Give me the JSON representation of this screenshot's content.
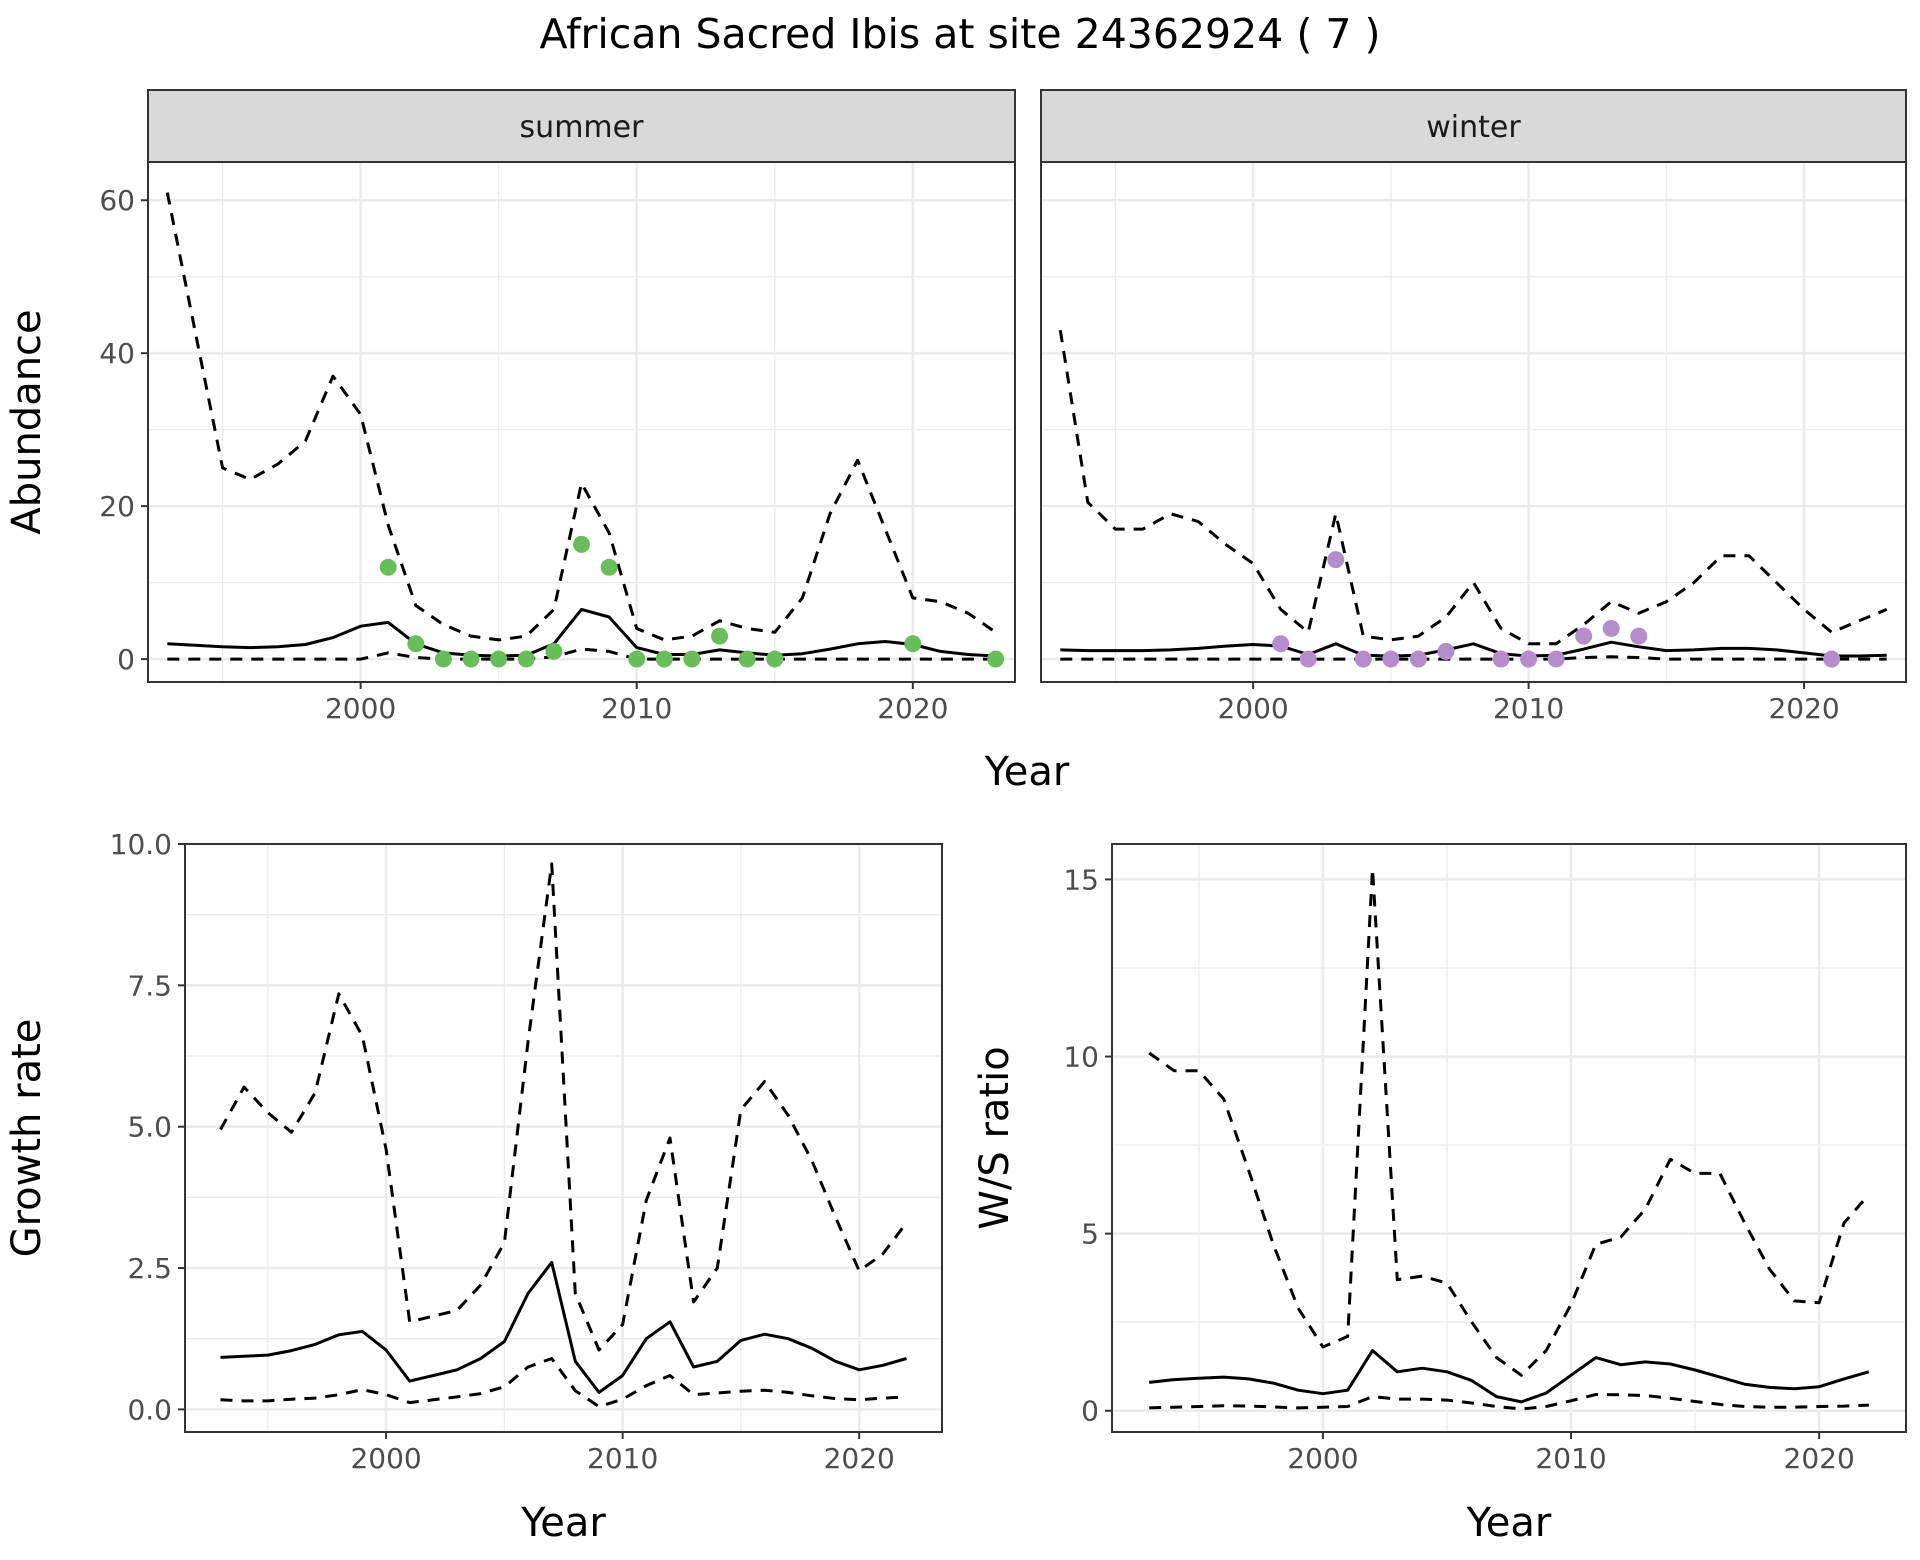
{
  "figure_title": "African Sacred Ibis at site 24362924 ( 7 )",
  "colors": {
    "summer_points": "#6ABD5B",
    "winter_points": "#B48ECC",
    "strip_fill": "#D9D9D9",
    "line": "#000000"
  },
  "chart_data": [
    {
      "type": "line",
      "panel": "abundance-summer",
      "strip": "summer",
      "xlabel": "Year",
      "ylabel": "Abundance",
      "xlim": [
        1992.3,
        2023.7
      ],
      "ylim": [
        -3,
        65
      ],
      "xticks": [
        2000,
        2010,
        2020
      ],
      "yticks": [
        0,
        20,
        40,
        60
      ],
      "grid": true,
      "x": [
        1993,
        1994,
        1995,
        1996,
        1997,
        1998,
        1999,
        2000,
        2001,
        2002,
        2003,
        2004,
        2005,
        2006,
        2007,
        2008,
        2009,
        2010,
        2011,
        2012,
        2013,
        2014,
        2015,
        2016,
        2017,
        2018,
        2019,
        2020,
        2021,
        2022,
        2023
      ],
      "series": [
        {
          "style": "solid",
          "values": [
            2.0,
            1.8,
            1.6,
            1.5,
            1.6,
            1.9,
            2.8,
            4.3,
            4.8,
            2.0,
            0.8,
            0.5,
            0.4,
            0.5,
            2.0,
            6.5,
            5.5,
            1.5,
            0.6,
            0.6,
            1.2,
            0.8,
            0.5,
            0.7,
            1.3,
            2.0,
            2.3,
            1.9,
            1.0,
            0.6,
            0.4
          ]
        },
        {
          "style": "dashed",
          "values": [
            61,
            43,
            25,
            23.5,
            25.5,
            28.5,
            37,
            32,
            17.5,
            7,
            4.5,
            3,
            2.5,
            3,
            6.5,
            23,
            16.5,
            4,
            2.5,
            3,
            5,
            4,
            3.5,
            8,
            19,
            26,
            17,
            8,
            7.5,
            6,
            3.5
          ]
        },
        {
          "style": "dashed",
          "values": [
            0,
            0,
            0,
            0,
            0,
            0,
            0,
            0,
            0.8,
            0.2,
            0,
            0,
            0,
            0,
            0.3,
            1.3,
            1.0,
            0,
            0,
            0,
            0,
            0,
            0,
            0,
            0,
            0,
            0,
            0,
            0,
            0,
            0
          ]
        }
      ],
      "points": {
        "x": [
          2001,
          2002,
          2003,
          2004,
          2005,
          2006,
          2007,
          2008,
          2009,
          2010,
          2011,
          2012,
          2013,
          2014,
          2015,
          2020,
          2023
        ],
        "y": [
          12,
          2,
          0,
          0,
          0,
          0,
          1,
          15,
          12,
          0,
          0,
          0,
          3,
          0,
          0,
          2,
          0
        ]
      }
    },
    {
      "type": "line",
      "panel": "abundance-winter",
      "strip": "winter",
      "xlabel": "Year",
      "ylabel": "Abundance",
      "xlim": [
        1992.3,
        2023.7
      ],
      "ylim": [
        -3,
        65
      ],
      "xticks": [
        2000,
        2010,
        2020
      ],
      "yticks": [
        0,
        20,
        40,
        60
      ],
      "grid": true,
      "x": [
        1993,
        1994,
        1995,
        1996,
        1997,
        1998,
        1999,
        2000,
        2001,
        2002,
        2003,
        2004,
        2005,
        2006,
        2007,
        2008,
        2009,
        2010,
        2011,
        2012,
        2013,
        2014,
        2015,
        2016,
        2017,
        2018,
        2019,
        2020,
        2021,
        2022,
        2023
      ],
      "series": [
        {
          "style": "solid",
          "values": [
            1.2,
            1.1,
            1.1,
            1.1,
            1.2,
            1.4,
            1.7,
            1.9,
            1.7,
            0.6,
            2.0,
            0.5,
            0.4,
            0.5,
            1.2,
            2.0,
            0.7,
            0.4,
            0.5,
            1.3,
            2.2,
            1.6,
            1.1,
            1.2,
            1.4,
            1.4,
            1.2,
            0.8,
            0.4,
            0.4,
            0.5
          ]
        },
        {
          "style": "dashed",
          "values": [
            43,
            20.5,
            17,
            17,
            19,
            18,
            15,
            12.5,
            6.5,
            3.5,
            19,
            3,
            2.5,
            3,
            5.5,
            10,
            4,
            2,
            2,
            4.5,
            7.5,
            6,
            7.5,
            10,
            13.5,
            13.5,
            10,
            6.5,
            3.5,
            5,
            6.5
          ]
        },
        {
          "style": "dashed",
          "values": [
            0,
            0,
            0,
            0,
            0,
            0,
            0,
            0,
            0,
            0,
            0,
            0,
            0,
            0,
            0,
            0,
            0,
            0,
            0,
            0.2,
            0.3,
            0.2,
            0,
            0,
            0,
            0,
            0,
            0,
            0,
            0,
            0
          ]
        }
      ],
      "points": {
        "x": [
          2001,
          2002,
          2003,
          2004,
          2005,
          2006,
          2007,
          2009,
          2010,
          2011,
          2012,
          2013,
          2014,
          2021
        ],
        "y": [
          2,
          0,
          13,
          0,
          0,
          0,
          1,
          0,
          0,
          0,
          3,
          4,
          3,
          0
        ]
      }
    },
    {
      "type": "line",
      "panel": "growth-rate",
      "xlabel": "Year",
      "ylabel": "Growth rate",
      "xlim": [
        1991.5,
        2023.5
      ],
      "ylim": [
        -0.4,
        10.0
      ],
      "xticks": [
        2000,
        2010,
        2020
      ],
      "yticks": [
        0.0,
        2.5,
        5.0,
        7.5,
        10.0
      ],
      "ytick_labels": [
        "0.0",
        "2.5",
        "5.0",
        "7.5",
        "10.0"
      ],
      "grid": true,
      "x": [
        1993,
        1994,
        1995,
        1996,
        1997,
        1998,
        1999,
        2000,
        2001,
        2002,
        2003,
        2004,
        2005,
        2006,
        2007,
        2008,
        2009,
        2010,
        2011,
        2012,
        2013,
        2014,
        2015,
        2016,
        2017,
        2018,
        2019,
        2020,
        2021,
        2022
      ],
      "series": [
        {
          "style": "solid",
          "values": [
            0.92,
            0.94,
            0.96,
            1.04,
            1.15,
            1.32,
            1.38,
            1.05,
            0.5,
            0.6,
            0.7,
            0.9,
            1.2,
            2.05,
            2.6,
            0.85,
            0.3,
            0.6,
            1.25,
            1.55,
            0.75,
            0.85,
            1.22,
            1.33,
            1.25,
            1.08,
            0.85,
            0.7,
            0.78,
            0.9
          ]
        },
        {
          "style": "dashed",
          "values": [
            4.95,
            5.7,
            5.25,
            4.9,
            5.6,
            7.35,
            6.6,
            4.6,
            1.55,
            1.65,
            1.75,
            2.2,
            2.95,
            6.5,
            9.65,
            2.05,
            1.05,
            1.5,
            3.7,
            4.8,
            1.9,
            2.5,
            5.3,
            5.8,
            5.2,
            4.4,
            3.4,
            2.45,
            2.75,
            3.3
          ]
        },
        {
          "style": "dashed",
          "values": [
            0.17,
            0.15,
            0.15,
            0.18,
            0.2,
            0.26,
            0.35,
            0.26,
            0.12,
            0.17,
            0.22,
            0.28,
            0.4,
            0.75,
            0.9,
            0.33,
            0.05,
            0.18,
            0.42,
            0.6,
            0.26,
            0.29,
            0.32,
            0.34,
            0.3,
            0.24,
            0.19,
            0.17,
            0.2,
            0.22
          ]
        }
      ]
    },
    {
      "type": "line",
      "panel": "ws-ratio",
      "xlabel": "Year",
      "ylabel": "W/S ratio",
      "xlim": [
        1991.5,
        2023.5
      ],
      "ylim": [
        -0.6,
        16.0
      ],
      "xticks": [
        2000,
        2010,
        2020
      ],
      "yticks": [
        0,
        5,
        10,
        15
      ],
      "grid": true,
      "x": [
        1993,
        1994,
        1995,
        1996,
        1997,
        1998,
        1999,
        2000,
        2001,
        2002,
        2003,
        2004,
        2005,
        2006,
        2007,
        2008,
        2009,
        2010,
        2011,
        2012,
        2013,
        2014,
        2015,
        2016,
        2017,
        2018,
        2019,
        2020,
        2021,
        2022
      ],
      "series": [
        {
          "style": "solid",
          "values": [
            0.8,
            0.88,
            0.92,
            0.95,
            0.9,
            0.78,
            0.58,
            0.48,
            0.58,
            1.7,
            1.1,
            1.2,
            1.1,
            0.85,
            0.4,
            0.25,
            0.5,
            1.0,
            1.5,
            1.3,
            1.38,
            1.32,
            1.15,
            0.95,
            0.75,
            0.66,
            0.62,
            0.68,
            0.9,
            1.1
          ]
        },
        {
          "style": "dashed",
          "values": [
            10.1,
            9.6,
            9.6,
            8.8,
            6.8,
            4.7,
            2.9,
            1.8,
            2.1,
            15.3,
            3.7,
            3.8,
            3.6,
            2.5,
            1.5,
            1.0,
            1.7,
            3.0,
            4.7,
            4.9,
            5.7,
            7.1,
            6.7,
            6.7,
            5.3,
            4.0,
            3.1,
            3.05,
            5.3,
            6.1
          ]
        },
        {
          "style": "dashed",
          "values": [
            0.08,
            0.1,
            0.12,
            0.14,
            0.13,
            0.11,
            0.08,
            0.1,
            0.12,
            0.4,
            0.33,
            0.33,
            0.3,
            0.22,
            0.12,
            0.05,
            0.12,
            0.28,
            0.46,
            0.45,
            0.43,
            0.35,
            0.26,
            0.18,
            0.12,
            0.1,
            0.1,
            0.12,
            0.13,
            0.16
          ]
        }
      ]
    }
  ]
}
